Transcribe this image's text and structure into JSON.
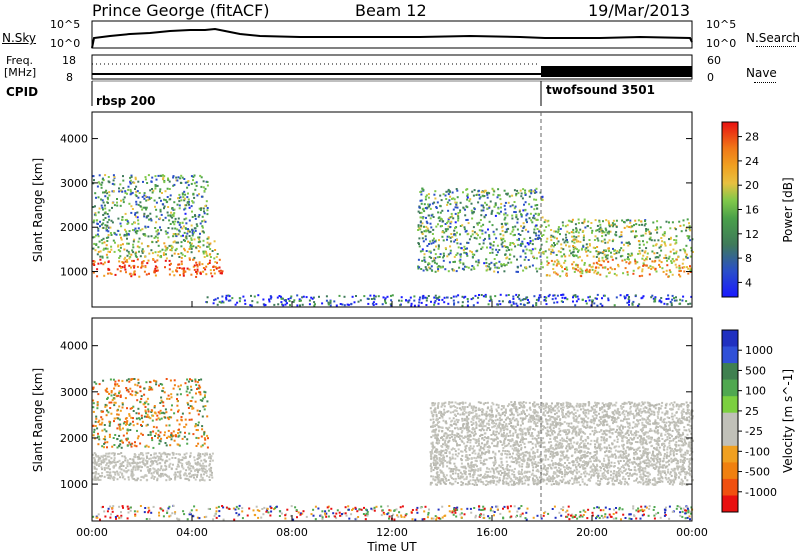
{
  "header": {
    "station": "Prince George (fitACF)",
    "beam": "Beam 12",
    "date": "19/Mar/2013"
  },
  "nsky_panel": {
    "left_label": "N.Sky",
    "right_label": "N.Search",
    "ticks_left": [
      "10^5",
      "10^0"
    ],
    "ticks_right": [
      "10^5",
      "10^0"
    ]
  },
  "freq_panel": {
    "label_line1": "Freq.",
    "label_line2": "[MHz]",
    "ticks_left": [
      "18",
      "8"
    ],
    "right_label": "Nave",
    "ticks_right": [
      "60",
      "0"
    ]
  },
  "cpid_panel": {
    "label": "CPID",
    "programs": [
      {
        "name": "rbsp 200",
        "start_hour": 0
      },
      {
        "name": "twofsound 3501",
        "start_hour": 18
      }
    ]
  },
  "chart_data": [
    {
      "type": "heatmap",
      "panel": "power",
      "ylabel": "Slant Range [km]",
      "ylim": [
        200,
        4600
      ],
      "y_ticks": [
        1000,
        2000,
        3000,
        4000
      ],
      "xlim": [
        0,
        24
      ],
      "colorbar_label": "Power [dB]",
      "colorbar_ticks": [
        "28",
        "24",
        "20",
        "16",
        "12",
        "8",
        "4"
      ],
      "colorbar_colors": [
        "#1a1aff",
        "#2a4fc8",
        "#3f7a5a",
        "#4aa04a",
        "#7fc84a",
        "#e8c040",
        "#f0a020",
        "#f07818",
        "#f04a10",
        "#e81010"
      ],
      "regions": [
        {
          "name": "early-strong-band",
          "x": [
            0,
            5.2
          ],
          "y": [
            900,
            1300
          ],
          "level": 0.85
        },
        {
          "name": "early-mid-band",
          "x": [
            0,
            5.0
          ],
          "y": [
            1300,
            1800
          ],
          "level": 0.45
        },
        {
          "name": "early-high-patches",
          "x": [
            0,
            4.6
          ],
          "y": [
            1800,
            3200
          ],
          "level": 0.3
        },
        {
          "name": "ground-band",
          "x": [
            4.5,
            24
          ],
          "y": [
            250,
            500
          ],
          "level": 0.1
        },
        {
          "name": "afternoon-arc",
          "x": [
            13.0,
            18.0
          ],
          "y": [
            1000,
            2900
          ],
          "level": 0.3
        },
        {
          "name": "evening-band",
          "x": [
            18.0,
            24
          ],
          "y": [
            900,
            1300
          ],
          "level": 0.65
        },
        {
          "name": "evening-mid-band",
          "x": [
            18.0,
            24
          ],
          "y": [
            1300,
            2200
          ],
          "level": 0.4
        }
      ]
    },
    {
      "type": "heatmap",
      "panel": "velocity",
      "ylabel": "Slant Range [km]",
      "ylim": [
        200,
        4600
      ],
      "y_ticks": [
        1000,
        2000,
        3000,
        4000
      ],
      "xlim": [
        0,
        24
      ],
      "xlabel": "Time UT",
      "x_ticks": [
        "00:00",
        "04:00",
        "08:00",
        "12:00",
        "16:00",
        "20:00",
        "00:00"
      ],
      "colorbar_label": "Velocity [m s^-1]",
      "colorbar_ticks": [
        "1000",
        "500",
        "100",
        "25",
        "-25",
        "-100",
        "-500",
        "-1000"
      ],
      "colorbar_colors": [
        "#2030c0",
        "#3050d8",
        "#3f8050",
        "#50a850",
        "#7cd040",
        "#c0c0b8",
        "#c0c0b8",
        "#f0a020",
        "#f08010",
        "#f05010",
        "#e81010"
      ],
      "regions": [
        {
          "name": "ground-scatter-early",
          "x": [
            0,
            4.8
          ],
          "y": [
            1100,
            1700
          ],
          "color": "gray"
        },
        {
          "name": "early-high-orange",
          "x": [
            0,
            4.6
          ],
          "y": [
            1800,
            3300
          ],
          "color": "orange"
        },
        {
          "name": "ground-scatter-afternoon",
          "x": [
            13.5,
            24
          ],
          "y": [
            1000,
            2800
          ],
          "color": "gray"
        },
        {
          "name": "ground-noise",
          "x": [
            0,
            24
          ],
          "y": [
            250,
            550
          ],
          "color": "mixed"
        }
      ]
    }
  ]
}
